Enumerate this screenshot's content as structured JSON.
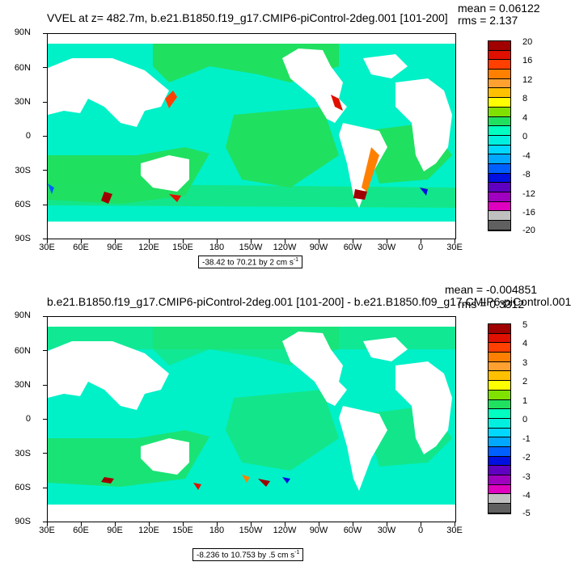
{
  "panel1": {
    "title": "VVEL at z= 482.7m, b.e21.B1850.f19_g17.CMIP6-piControl-2deg.001 [101-200]",
    "mean": "mean = 0.06122",
    "rms": "rms = 2.137",
    "range_text": "-38.42 to 70.21 by 2 cm s",
    "range_unit_exp": "-1",
    "colorbar_labels": [
      "20",
      "16",
      "12",
      "8",
      "4",
      "0",
      "-4",
      "-8",
      "-12",
      "-16",
      "-20"
    ]
  },
  "panel2": {
    "title": "b.e21.B1850.f19_g17.CMIP6-piControl-2deg.001 [101-200] - b.e21.B1850.f09_g17.CMIP6-piControl.001",
    "mean": "mean = -0.004851",
    "rms": "rms = 0.3312",
    "range_text": "-8.236 to 10.753 by .5 cm s",
    "range_unit_exp": "-1",
    "colorbar_labels": [
      "5",
      "4",
      "3",
      "2",
      "1",
      "0",
      "-1",
      "-2",
      "-3",
      "-4",
      "-5"
    ]
  },
  "lat_labels": [
    "90N",
    "60N",
    "30N",
    "0",
    "30S",
    "60S",
    "90S"
  ],
  "lon_labels": [
    "30E",
    "60E",
    "90E",
    "120E",
    "150E",
    "180",
    "150W",
    "120W",
    "90W",
    "60W",
    "30W",
    "0",
    "30E"
  ],
  "colors": {
    "ocean_main": "#00f0c8",
    "ocean_green": "#20e060",
    "land": "#ffffff"
  },
  "colorbar_colors": [
    "#a00000",
    "#e01000",
    "#ff4000",
    "#ff8000",
    "#ffa030",
    "#ffc000",
    "#ffff00",
    "#80e000",
    "#20e060",
    "#00ffc0",
    "#00f0e0",
    "#00d8ff",
    "#00a8ff",
    "#0060ff",
    "#0010e0",
    "#6000c0",
    "#a000c0",
    "#e000c0",
    "#c0c0c0",
    "#606060"
  ]
}
